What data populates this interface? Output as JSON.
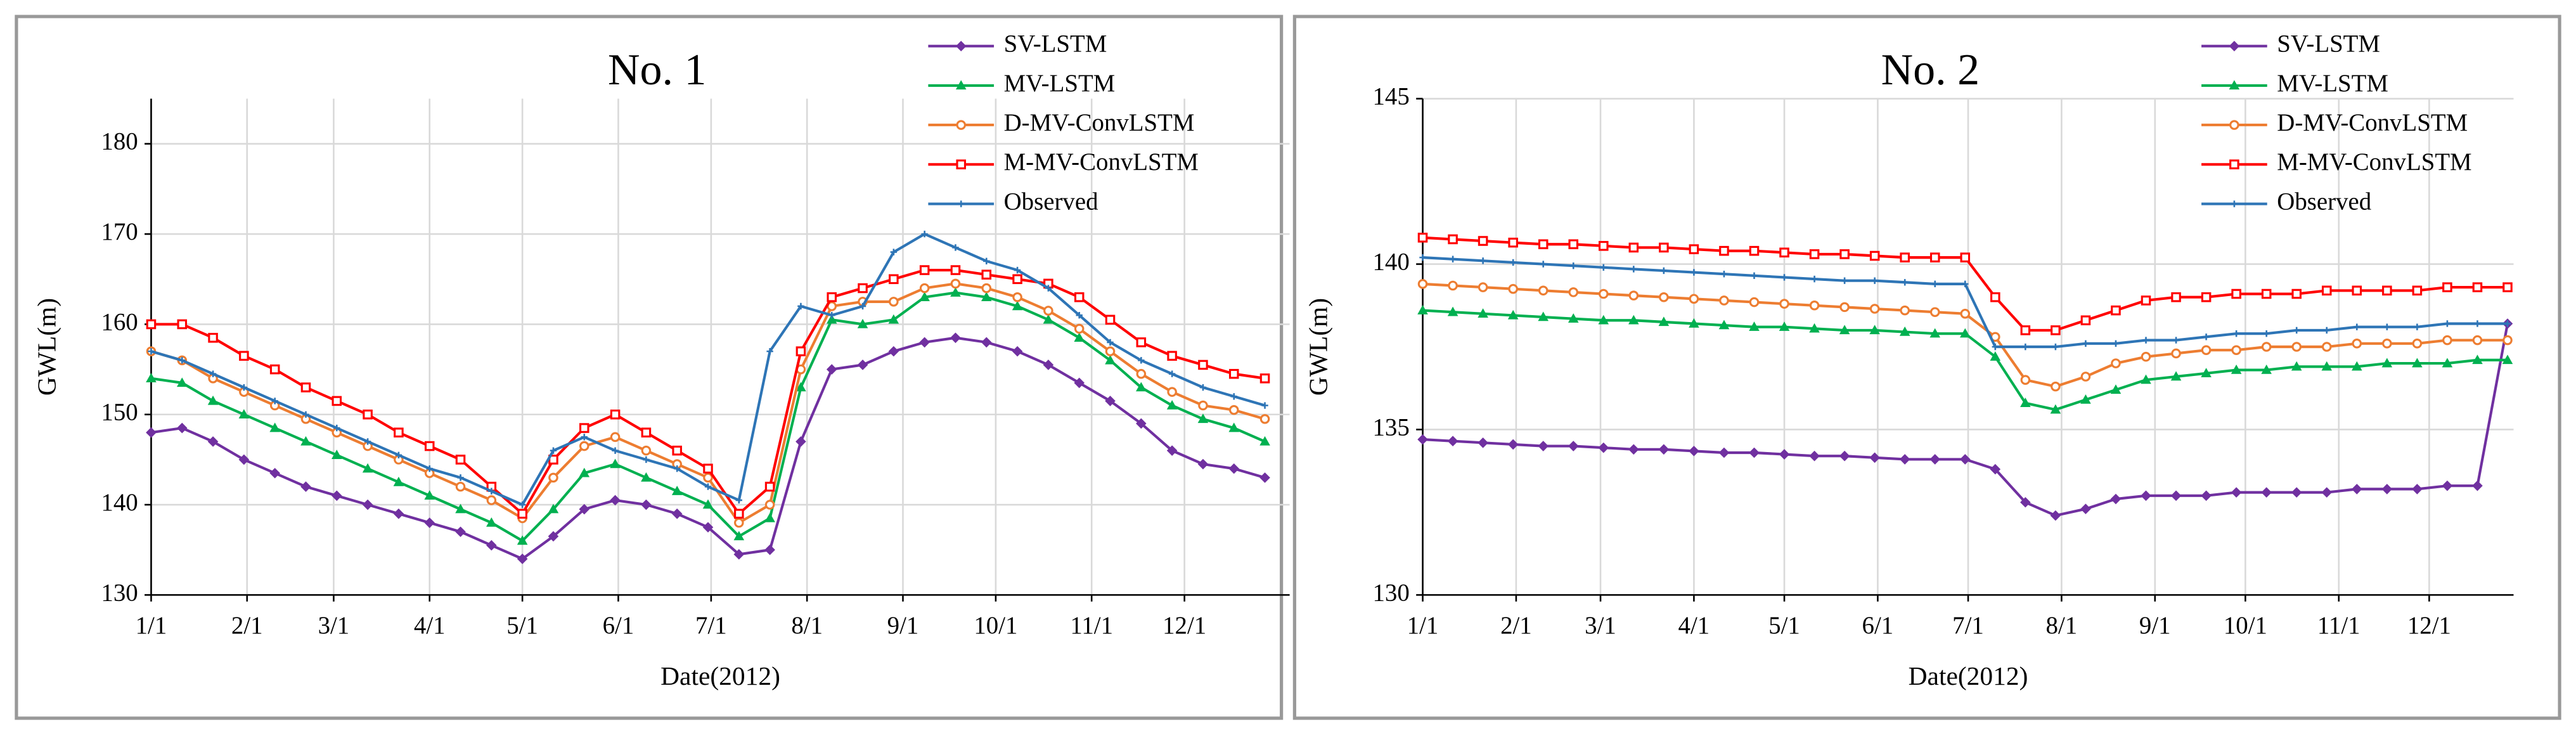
{
  "chart_data": [
    {
      "type": "line",
      "title": "No. 1",
      "xlabel": "Date(2012)",
      "ylabel": "GWL(m)",
      "x": [
        0,
        10,
        20,
        30,
        40,
        50,
        60,
        70,
        80,
        90,
        100,
        110,
        120,
        130,
        140,
        150,
        160,
        170,
        180,
        190,
        200,
        210,
        220,
        230,
        240,
        250,
        260,
        270,
        280,
        290,
        300,
        310,
        320,
        330,
        340,
        350,
        360
      ],
      "xlim": [
        0,
        368
      ],
      "xticks": [
        {
          "value": 0,
          "label": "1/1"
        },
        {
          "value": 31,
          "label": "2/1"
        },
        {
          "value": 59,
          "label": "3/1"
        },
        {
          "value": 90,
          "label": "4/1"
        },
        {
          "value": 120,
          "label": "5/1"
        },
        {
          "value": 151,
          "label": "6/1"
        },
        {
          "value": 181,
          "label": "7/1"
        },
        {
          "value": 212,
          "label": "8/1"
        },
        {
          "value": 243,
          "label": "9/1"
        },
        {
          "value": 273,
          "label": "10/1"
        },
        {
          "value": 304,
          "label": "11/1"
        },
        {
          "value": 334,
          "label": "12/1"
        }
      ],
      "ylim": [
        130,
        185
      ],
      "yticks": [
        130,
        140,
        150,
        160,
        170,
        180
      ],
      "grid": true,
      "series": [
        {
          "name": "SV-LSTM",
          "color": "#7030a0",
          "marker": "diamond",
          "values": [
            148,
            148.5,
            147,
            145,
            143.5,
            142,
            141,
            140,
            139,
            138,
            137,
            135.5,
            134,
            136.5,
            139.5,
            140.5,
            140,
            139,
            137.5,
            134.5,
            135,
            147,
            155,
            155.5,
            157,
            158,
            158.5,
            158,
            157,
            155.5,
            153.5,
            151.5,
            149,
            146,
            144.5,
            144,
            143
          ]
        },
        {
          "name": "MV-LSTM",
          "color": "#00b050",
          "marker": "triangle",
          "values": [
            154,
            153.5,
            151.5,
            150,
            148.5,
            147,
            145.5,
            144,
            142.5,
            141,
            139.5,
            138,
            136,
            139.5,
            143.5,
            144.5,
            143,
            141.5,
            140,
            136.5,
            138.5,
            153,
            160.5,
            160,
            160.5,
            163,
            163.5,
            163,
            162,
            160.5,
            158.5,
            156,
            153,
            151,
            149.5,
            148.5,
            147
          ]
        },
        {
          "name": "D-MV-ConvLSTM",
          "color": "#ed7d31",
          "marker": "circle",
          "values": [
            157,
            156,
            154,
            152.5,
            151,
            149.5,
            148,
            146.5,
            145,
            143.5,
            142,
            140.5,
            138.5,
            143,
            146.5,
            147.5,
            146,
            144.5,
            143,
            138,
            140,
            155,
            162,
            162.5,
            162.5,
            164,
            164.5,
            164,
            163,
            161.5,
            159.5,
            157,
            154.5,
            152.5,
            151,
            150.5,
            149.5
          ]
        },
        {
          "name": "M-MV-ConvLSTM",
          "color": "#ff0000",
          "marker": "square",
          "values": [
            160,
            160,
            158.5,
            156.5,
            155,
            153,
            151.5,
            150,
            148,
            146.5,
            145,
            142,
            139,
            145,
            148.5,
            150,
            148,
            146,
            144,
            139,
            142,
            157,
            163,
            164,
            165,
            166,
            166,
            165.5,
            165,
            164.5,
            163,
            160.5,
            158,
            156.5,
            155.5,
            154.5,
            154
          ]
        },
        {
          "name": "Observed",
          "color": "#2e75b6",
          "marker": "plus",
          "values": [
            157,
            156,
            154.5,
            153,
            151.5,
            150,
            148.5,
            147,
            145.5,
            144,
            143,
            141.5,
            140,
            146,
            147.5,
            146,
            145,
            144,
            142,
            140.5,
            157,
            162,
            161,
            162,
            168,
            170,
            168.5,
            167,
            166,
            164,
            161,
            158,
            156,
            154.5,
            153,
            152,
            151
          ]
        }
      ]
    },
    {
      "type": "line",
      "title": "No. 2",
      "xlabel": "Date(2012)",
      "ylabel": "GWL(m)",
      "x": [
        0,
        10,
        20,
        30,
        40,
        50,
        60,
        70,
        80,
        90,
        100,
        110,
        120,
        130,
        140,
        150,
        160,
        170,
        180,
        190,
        200,
        210,
        220,
        230,
        240,
        250,
        260,
        270,
        280,
        290,
        300,
        310,
        320,
        330,
        340,
        350,
        360
      ],
      "xlim": [
        0,
        362
      ],
      "xticks": [
        {
          "value": 0,
          "label": "1/1"
        },
        {
          "value": 31,
          "label": "2/1"
        },
        {
          "value": 59,
          "label": "3/1"
        },
        {
          "value": 90,
          "label": "4/1"
        },
        {
          "value": 120,
          "label": "5/1"
        },
        {
          "value": 151,
          "label": "6/1"
        },
        {
          "value": 181,
          "label": "7/1"
        },
        {
          "value": 212,
          "label": "8/1"
        },
        {
          "value": 243,
          "label": "9/1"
        },
        {
          "value": 273,
          "label": "10/1"
        },
        {
          "value": 304,
          "label": "11/1"
        },
        {
          "value": 334,
          "label": "12/1"
        }
      ],
      "ylim": [
        130,
        145
      ],
      "yticks": [
        130,
        135,
        140,
        145
      ],
      "grid": true,
      "series": [
        {
          "name": "SV-LSTM",
          "color": "#7030a0",
          "marker": "diamond",
          "values": [
            134.7,
            134.65,
            134.6,
            134.55,
            134.5,
            134.5,
            134.45,
            134.4,
            134.4,
            134.35,
            134.3,
            134.3,
            134.25,
            134.2,
            134.2,
            134.15,
            134.1,
            134.1,
            134.1,
            133.8,
            132.8,
            132.4,
            132.6,
            132.9,
            133,
            133,
            133,
            133.1,
            133.1,
            133.1,
            133.1,
            133.2,
            133.2,
            133.2,
            133.3,
            133.3,
            138.2
          ]
        },
        {
          "name": "MV-LSTM",
          "color": "#00b050",
          "marker": "triangle",
          "values": [
            138.6,
            138.55,
            138.5,
            138.45,
            138.4,
            138.35,
            138.3,
            138.3,
            138.25,
            138.2,
            138.15,
            138.1,
            138.1,
            138.05,
            138,
            138,
            137.95,
            137.9,
            137.9,
            137.2,
            135.8,
            135.6,
            135.9,
            136.2,
            136.5,
            136.6,
            136.7,
            136.8,
            136.8,
            136.9,
            136.9,
            136.9,
            137,
            137,
            137,
            137.1,
            137.1
          ]
        },
        {
          "name": "D-MV-ConvLSTM",
          "color": "#ed7d31",
          "marker": "circle",
          "values": [
            139.4,
            139.35,
            139.3,
            139.25,
            139.2,
            139.15,
            139.1,
            139.05,
            139,
            138.95,
            138.9,
            138.85,
            138.8,
            138.75,
            138.7,
            138.65,
            138.6,
            138.55,
            138.5,
            137.8,
            136.5,
            136.3,
            136.6,
            137,
            137.2,
            137.3,
            137.4,
            137.4,
            137.5,
            137.5,
            137.5,
            137.6,
            137.6,
            137.6,
            137.7,
            137.7,
            137.7
          ]
        },
        {
          "name": "M-MV-ConvLSTM",
          "color": "#ff0000",
          "marker": "square",
          "values": [
            140.8,
            140.75,
            140.7,
            140.65,
            140.6,
            140.6,
            140.55,
            140.5,
            140.5,
            140.45,
            140.4,
            140.4,
            140.35,
            140.3,
            140.3,
            140.25,
            140.2,
            140.2,
            140.2,
            139,
            138,
            138,
            138.3,
            138.6,
            138.9,
            139,
            139,
            139.1,
            139.1,
            139.1,
            139.2,
            139.2,
            139.2,
            139.2,
            139.3,
            139.3,
            139.3
          ]
        },
        {
          "name": "Observed",
          "color": "#2e75b6",
          "marker": "plus",
          "values": [
            140.2,
            140.15,
            140.1,
            140.05,
            140,
            139.95,
            139.9,
            139.85,
            139.8,
            139.75,
            139.7,
            139.65,
            139.6,
            139.55,
            139.5,
            139.5,
            139.45,
            139.4,
            139.4,
            137.5,
            137.5,
            137.5,
            137.6,
            137.6,
            137.7,
            137.7,
            137.8,
            137.9,
            137.9,
            138,
            138,
            138.1,
            138.1,
            138.1,
            138.2,
            138.2,
            138.2
          ]
        }
      ]
    }
  ]
}
